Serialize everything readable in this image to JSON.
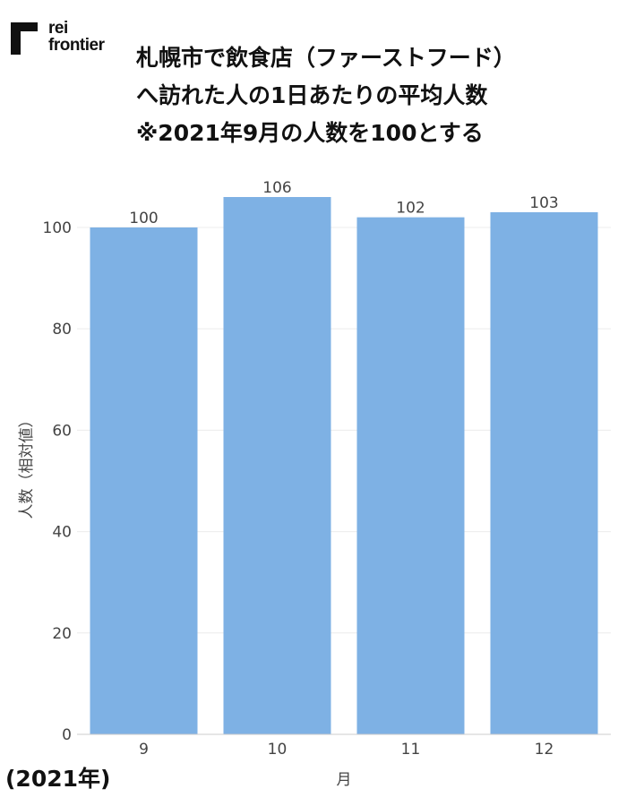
{
  "logo": {
    "line1": "rei",
    "line2": "frontier",
    "icon": "logo-mark-icon"
  },
  "title_lines": [
    "札幌市で飲食店（ファーストフード）",
    "へ訪れた人の1日あたりの平均人数",
    "※2021年9月の人数を100とする"
  ],
  "year_note": "(2021年)",
  "colors": {
    "bar": "#7eb1e4",
    "grid": "#ececec",
    "axis": "#cccccc",
    "text": "#444444"
  },
  "chart_data": {
    "type": "bar",
    "title": "札幌市で飲食店（ファーストフード）へ訪れた人の1日あたりの平均人数 ※2021年9月の人数を100とする",
    "categories": [
      "9",
      "10",
      "11",
      "12"
    ],
    "values": [
      100,
      106,
      102,
      103
    ],
    "data_labels": [
      "100",
      "106",
      "102",
      "103"
    ],
    "xlabel": "月",
    "ylabel": "人数（相対値）",
    "ylim": [
      0,
      106
    ],
    "yticks": [
      0,
      20,
      40,
      60,
      80,
      100
    ],
    "grid": true,
    "legend": "none"
  }
}
